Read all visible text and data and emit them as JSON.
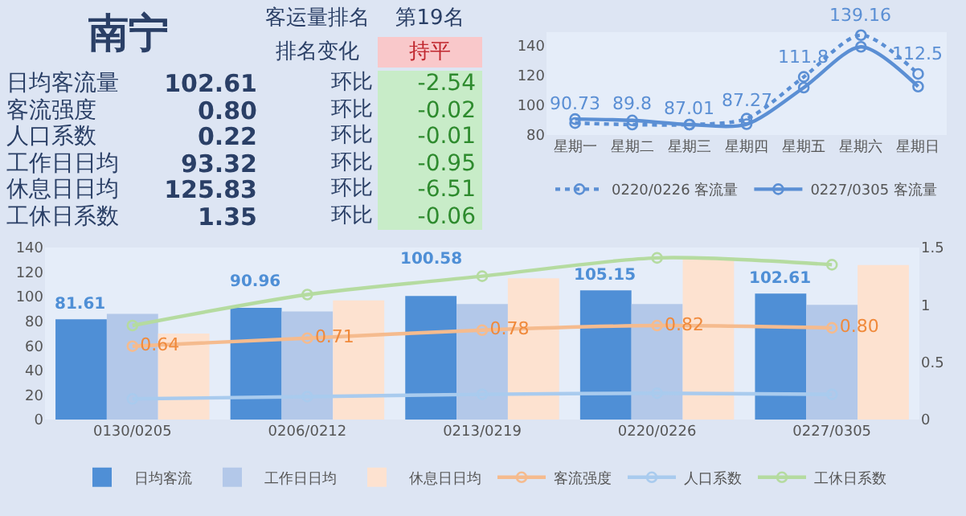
{
  "chart_data": [
    {
      "type": "other",
      "title": "南宁",
      "annotations": [
        "客运量排名",
        "第19名",
        "排名变化",
        "持平",
        "日均客流量",
        "102.61",
        "环比",
        "-2.54",
        "客流强度",
        "0.80",
        "环比",
        "-0.02",
        "人口系数",
        "0.22",
        "环比",
        "-0.01",
        "工作日日均",
        "93.32",
        "环比",
        "-0.95",
        "休息日日均",
        "125.83",
        "环比",
        "-6.51",
        "工休日系数",
        "1.35",
        "环比",
        "-0.06"
      ]
    },
    {
      "type": "line",
      "categories": [
        "星期一",
        "星期二",
        "星期三",
        "星期四",
        "星期五",
        "星期六",
        "星期日"
      ],
      "ylim": [
        80,
        149
      ],
      "yticks": [
        80,
        100,
        120,
        140
      ],
      "grid": false,
      "legend": "bottom",
      "marker": "circle",
      "series": [
        {
          "name": "0220/0226 客流量",
          "color": "#5b8fd4",
          "line_style": "dotted",
          "values": [
            88,
            87,
            87,
            91,
            119,
            147,
            121
          ]
        },
        {
          "name": "0227/0305 客流量",
          "color": "#5b8fd4",
          "line_style": "solid",
          "values": [
            90.73,
            89.8,
            87.01,
            87.27,
            111.8,
            139.16,
            112.5
          ],
          "value_labels": [
            "90.73",
            "89.8",
            "87.01",
            "87.27",
            "111.8",
            "139.16",
            "112.5"
          ]
        }
      ]
    },
    {
      "type": "bar",
      "categories": [
        "0130/0205",
        "0206/0212",
        "0213/0219",
        "0220/0226",
        "0227/0305"
      ],
      "ylim": [
        0,
        140
      ],
      "yticks": [
        0,
        20,
        40,
        60,
        80,
        100,
        120,
        140
      ],
      "y2lim": [
        0,
        1.5
      ],
      "y2ticks": [
        0,
        0.5,
        1,
        1.5
      ],
      "grid": false,
      "legend": "bottom",
      "marker": "circle",
      "series": [
        {
          "name": "日均客流",
          "type": "bar",
          "color": "#4f8fd6",
          "values": [
            81.61,
            90.96,
            100.58,
            105.15,
            102.61
          ],
          "value_labels": [
            "81.61",
            "90.96",
            "100.58",
            "105.15",
            "102.61"
          ]
        },
        {
          "name": "工作日日均",
          "type": "bar",
          "color": "#b3c8e9",
          "values": [
            86,
            88,
            94,
            94,
            93.32
          ]
        },
        {
          "name": "休息日日均",
          "type": "bar",
          "color": "#fde2d0",
          "values": [
            70,
            97,
            115,
            132,
            125.83
          ]
        },
        {
          "name": "客流强度",
          "type": "line",
          "axis": "y2",
          "color": "#f5bb8e",
          "values": [
            0.64,
            0.71,
            0.78,
            0.82,
            0.8
          ],
          "value_labels": [
            "0.64",
            "0.71",
            "0.78",
            "0.82",
            "0.80"
          ]
        },
        {
          "name": "人口系数",
          "type": "line",
          "axis": "y2",
          "color": "#a9cbee",
          "values": [
            0.18,
            0.2,
            0.22,
            0.23,
            0.22
          ]
        },
        {
          "name": "工休日系数",
          "type": "line",
          "axis": "y2",
          "color": "#b5dba0",
          "values": [
            0.82,
            1.09,
            1.25,
            1.41,
            1.35
          ]
        }
      ]
    }
  ]
}
